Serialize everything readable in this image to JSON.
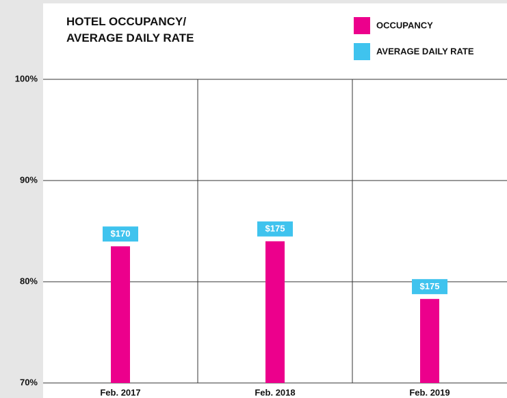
{
  "chart_data": {
    "type": "bar",
    "title": "HOTEL OCCUPANCY/\nAVERAGE DAILY RATE",
    "categories": [
      "Feb. 2017",
      "Feb. 2018",
      "Feb. 2019"
    ],
    "series": [
      {
        "name": "OCCUPANCY",
        "color": "#ec008c",
        "values": [
          83.5,
          84.0,
          78.3
        ]
      },
      {
        "name": "AVERAGE DAILY RATE",
        "color": "#3fc3ee",
        "values": [
          170,
          175,
          175
        ],
        "value_labels": [
          "$170",
          "$175",
          "$175"
        ]
      }
    ],
    "ylim": [
      70,
      100
    ],
    "yticks": [
      {
        "value": 70,
        "label": "70%"
      },
      {
        "value": 80,
        "label": "80%"
      },
      {
        "value": 90,
        "label": "90%"
      },
      {
        "value": 100,
        "label": "100%"
      }
    ],
    "grid": true,
    "legend": "top-right"
  }
}
